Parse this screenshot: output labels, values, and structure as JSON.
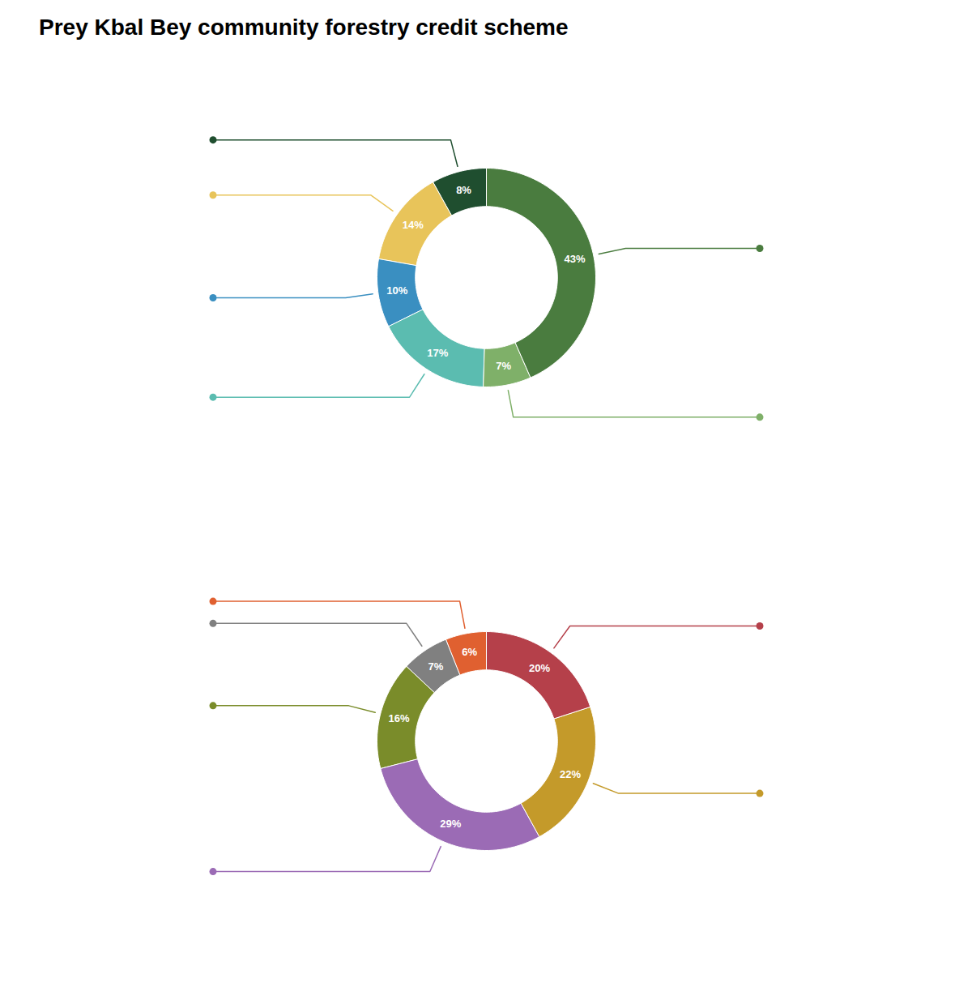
{
  "chart_data": [
    {
      "type": "pie",
      "title": "Prey Kbal Bey community forestry credit scheme",
      "values": [
        43,
        7,
        17,
        10,
        14,
        8
      ],
      "value_labels": [
        "43%",
        "7%",
        "17%",
        "10%",
        "14%",
        "8%"
      ],
      "colors": [
        "#4a7c3f",
        "#7fb069",
        "#5bbcb0",
        "#3a8fc1",
        "#e8c45a",
        "#1f4e2f"
      ],
      "data_labels": true
    },
    {
      "type": "pie",
      "values": [
        20,
        22,
        29,
        16,
        7,
        6
      ],
      "value_labels": [
        "20%",
        "22%",
        "29%",
        "16%",
        "7%",
        "6%"
      ],
      "colors": [
        "#b5404a",
        "#c49a2a",
        "#9b6bb5",
        "#7a8c2a",
        "#808080",
        "#e06030"
      ],
      "data_labels": true
    }
  ]
}
